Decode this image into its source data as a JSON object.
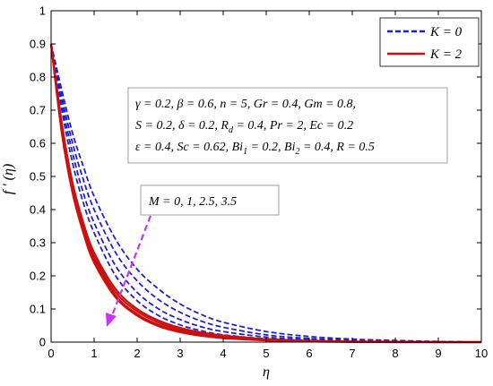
{
  "chart_data": {
    "type": "line",
    "xlabel": "η",
    "ylabel": "f ' (η)",
    "xlim": [
      0,
      10
    ],
    "ylim": [
      0,
      1
    ],
    "x_ticks": [
      0,
      1,
      2,
      3,
      4,
      5,
      6,
      7,
      8,
      9,
      10
    ],
    "y_ticks": [
      0,
      0.1,
      0.2,
      0.3,
      0.4,
      0.5,
      0.6,
      0.7,
      0.8,
      0.9,
      1
    ],
    "x_tick_labels": [
      "0",
      "1",
      "2",
      "3",
      "4",
      "5",
      "6",
      "7",
      "8",
      "9",
      "10"
    ],
    "y_tick_labels": [
      "0",
      "0.1",
      "0.2",
      "0.3",
      "0.4",
      "0.5",
      "0.6",
      "0.7",
      "0.8",
      "0.9",
      "1"
    ],
    "x": [
      0,
      0.25,
      0.5,
      0.75,
      1,
      1.5,
      2,
      2.5,
      3,
      3.5,
      4,
      5,
      6,
      7,
      8,
      9,
      10
    ],
    "legend": {
      "position": "top-right",
      "entries": [
        {
          "label": "K = 0",
          "color": "#2020d0",
          "style": "dashed"
        },
        {
          "label": "K = 2",
          "color": "#cc1010",
          "style": "solid"
        }
      ]
    },
    "series": [
      {
        "group": "K = 0",
        "M": "0",
        "color": "#2020d0",
        "style": "dashed",
        "values": [
          0.9,
          0.76,
          0.63,
          0.53,
          0.44,
          0.31,
          0.22,
          0.16,
          0.115,
          0.083,
          0.06,
          0.032,
          0.017,
          0.009,
          0.005,
          0.002,
          0
        ]
      },
      {
        "group": "K = 0",
        "M": "1",
        "color": "#2020d0",
        "style": "dashed",
        "values": [
          0.9,
          0.74,
          0.6,
          0.49,
          0.4,
          0.27,
          0.185,
          0.128,
          0.09,
          0.063,
          0.045,
          0.022,
          0.011,
          0.006,
          0.003,
          0.001,
          0
        ]
      },
      {
        "group": "K = 0",
        "M": "2.5",
        "color": "#2020d0",
        "style": "dashed",
        "values": [
          0.9,
          0.72,
          0.57,
          0.45,
          0.36,
          0.23,
          0.15,
          0.1,
          0.068,
          0.046,
          0.032,
          0.015,
          0.007,
          0.003,
          0.002,
          0.001,
          0
        ]
      },
      {
        "group": "K = 0",
        "M": "3.5",
        "color": "#2020d0",
        "style": "dashed",
        "values": [
          0.9,
          0.7,
          0.54,
          0.42,
          0.33,
          0.2,
          0.125,
          0.08,
          0.052,
          0.034,
          0.022,
          0.01,
          0.005,
          0.002,
          0.001,
          0,
          0
        ]
      },
      {
        "group": "K = 2",
        "M": "0",
        "color": "#cc1010",
        "style": "solid",
        "values": [
          0.9,
          0.66,
          0.48,
          0.36,
          0.27,
          0.16,
          0.1,
          0.065,
          0.043,
          0.029,
          0.02,
          0.009,
          0.004,
          0.002,
          0.001,
          0,
          0
        ]
      },
      {
        "group": "K = 2",
        "M": "1",
        "color": "#cc1010",
        "style": "solid",
        "values": [
          0.9,
          0.65,
          0.47,
          0.35,
          0.26,
          0.15,
          0.093,
          0.059,
          0.038,
          0.025,
          0.017,
          0.007,
          0.003,
          0.001,
          0.001,
          0,
          0
        ]
      },
      {
        "group": "K = 2",
        "M": "2.5",
        "color": "#cc1010",
        "style": "solid",
        "values": [
          0.9,
          0.64,
          0.46,
          0.34,
          0.25,
          0.14,
          0.085,
          0.052,
          0.033,
          0.021,
          0.014,
          0.006,
          0.002,
          0.001,
          0,
          0,
          0
        ]
      },
      {
        "group": "K = 2",
        "M": "3.5",
        "color": "#cc1010",
        "style": "solid",
        "values": [
          0.9,
          0.63,
          0.45,
          0.33,
          0.24,
          0.135,
          0.08,
          0.048,
          0.03,
          0.019,
          0.012,
          0.005,
          0.002,
          0.001,
          0,
          0,
          0
        ]
      }
    ],
    "annotations": {
      "params_line1": "γ = 0.2, β = 0.6, n = 5, Gr = 0.4, Gm = 0.8,",
      "params_line2_a": "S = 0.2, δ = 0.2, R",
      "params_line2_sub": "d",
      "params_line2_b": " = 0.4, Pr = 2, Ec = 0.2",
      "params_line3_a": "ε = 0.4, Sc = 0.62, Bi",
      "params_line3_sub1": "1",
      "params_line3_b": " = 0.2, Bi",
      "params_line3_sub2": "2",
      "params_line3_c": " = 0.4, R = 0.5",
      "m_label": "M = 0, 1, 2.5, 3.5",
      "arrow_color": "#cc33ee"
    },
    "grid": false
  }
}
